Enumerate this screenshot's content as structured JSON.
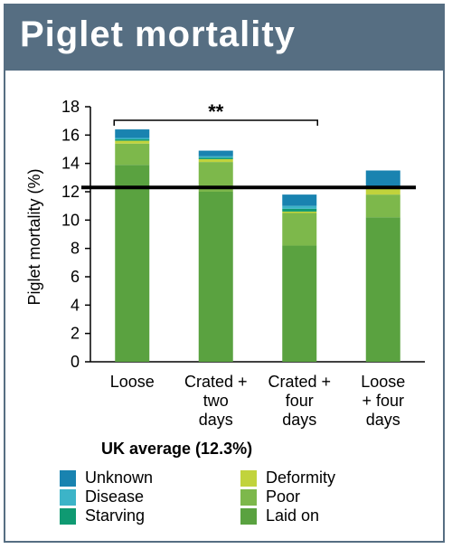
{
  "title": "Piglet mortality",
  "chart_data": {
    "type": "bar",
    "stacked": true,
    "ylabel": "Piglet mortality (%)",
    "xlabel": "",
    "ylim": [
      0,
      18
    ],
    "yticks": [
      0,
      2,
      4,
      6,
      8,
      10,
      12,
      14,
      16,
      18
    ],
    "grid": false,
    "categories": [
      {
        "lines": [
          "Loose"
        ]
      },
      {
        "lines": [
          "Crated +",
          "two",
          "days"
        ]
      },
      {
        "lines": [
          "Crated +",
          "four",
          "days"
        ]
      },
      {
        "lines": [
          "Loose",
          "+ four",
          "days"
        ]
      }
    ],
    "series": [
      {
        "name": "Laid on",
        "color": "#5aa240",
        "values": [
          13.9,
          12.0,
          8.2,
          10.2
        ]
      },
      {
        "name": "Poor",
        "color": "#7db84b",
        "values": [
          1.5,
          2.1,
          2.3,
          1.6
        ]
      },
      {
        "name": "Deformity",
        "color": "#c1d33c",
        "values": [
          0.2,
          0.2,
          0.1,
          0.5
        ]
      },
      {
        "name": "Starving",
        "color": "#0f9a72",
        "values": [
          0.1,
          0.1,
          0.2,
          0.0
        ]
      },
      {
        "name": "Disease",
        "color": "#3cb4c8",
        "values": [
          0.1,
          0.1,
          0.2,
          0.0
        ]
      },
      {
        "name": "Unknown",
        "color": "#1983b0",
        "values": [
          0.6,
          0.4,
          0.8,
          1.2
        ]
      }
    ],
    "reference_line": {
      "label": "UK average (12.3%)",
      "value": 12.3
    },
    "significance": {
      "label": "**",
      "from_category": 0,
      "to_category": 2
    }
  },
  "legend": {
    "title": "UK average (12.3%)",
    "items": [
      {
        "name": "Unknown",
        "color": "#1983b0"
      },
      {
        "name": "Deformity",
        "color": "#c1d33c"
      },
      {
        "name": "Disease",
        "color": "#3cb4c8"
      },
      {
        "name": "Poor",
        "color": "#7db84b"
      },
      {
        "name": "Starving",
        "color": "#0f9a72"
      },
      {
        "name": "Laid on",
        "color": "#5aa240"
      }
    ]
  }
}
